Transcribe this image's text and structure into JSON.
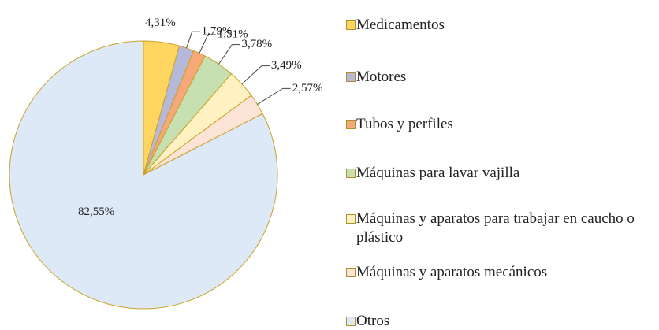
{
  "chart_data": {
    "type": "pie",
    "categories": [
      "Medicamentos",
      "Motores",
      "Tubos y perfiles",
      "Máquinas para lavar vajilla",
      "Máquinas y aparatos para trabajar en caucho o plástico",
      "Máquinas y aparatos mecánicos",
      "Otros"
    ],
    "values": [
      4.31,
      1.79,
      1.51,
      3.78,
      3.49,
      2.57,
      82.55
    ],
    "value_labels": [
      "4,31%",
      "1,79%",
      "1,51%",
      "3,78%",
      "3,49%",
      "2,57%",
      "82,55%"
    ],
    "colors": [
      "#fdd55f",
      "#b5b8d8",
      "#f5a878",
      "#c6e0b2",
      "#fff2c2",
      "#fbe3d6",
      "#dde9f6"
    ],
    "legend": "right"
  }
}
